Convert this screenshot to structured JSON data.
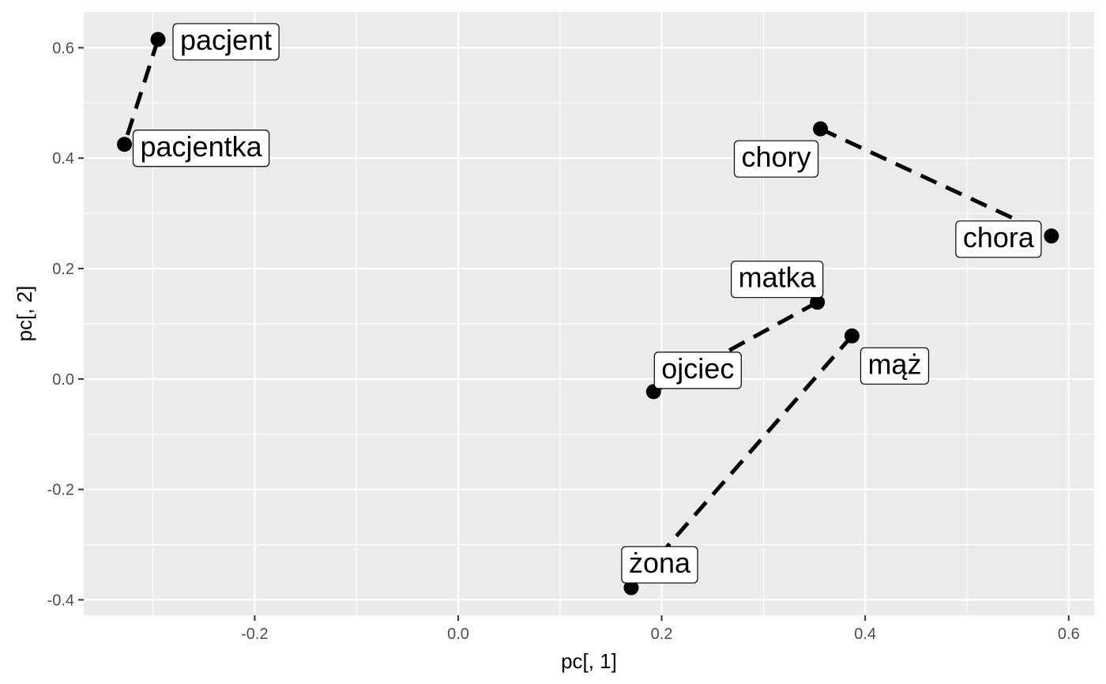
{
  "chart_data": {
    "type": "scatter",
    "xlabel": "pc[, 1]",
    "ylabel": "pc[, 2]",
    "xlim": [
      -0.368,
      0.625
    ],
    "ylim": [
      -0.428,
      0.665
    ],
    "x_ticks": [
      -0.2,
      0.0,
      0.2,
      0.4,
      0.6
    ],
    "x_tick_labels": [
      "-0.2",
      "0.0",
      "0.2",
      "0.4",
      "0.6"
    ],
    "y_ticks": [
      -0.4,
      -0.2,
      0.0,
      0.2,
      0.4,
      0.6
    ],
    "y_tick_labels": [
      "-0.4",
      "-0.2",
      "0.0",
      "0.2",
      "0.4",
      "0.6"
    ],
    "grid": true,
    "points": [
      {
        "label": "pacjent",
        "x": -0.295,
        "y": 0.615
      },
      {
        "label": "pacjentka",
        "x": -0.328,
        "y": 0.425
      },
      {
        "label": "chory",
        "x": 0.356,
        "y": 0.453
      },
      {
        "label": "chora",
        "x": 0.583,
        "y": 0.259
      },
      {
        "label": "matka",
        "x": 0.353,
        "y": 0.139
      },
      {
        "label": "ojciec",
        "x": 0.192,
        "y": -0.023
      },
      {
        "label": "mąż",
        "x": 0.387,
        "y": 0.078
      },
      {
        "label": "żona",
        "x": 0.17,
        "y": -0.378
      }
    ],
    "segments": [
      {
        "from": "pacjent",
        "to": "pacjentka"
      },
      {
        "from": "chory",
        "to": "chora"
      },
      {
        "from": "matka",
        "to": "ojciec"
      },
      {
        "from": "mąż",
        "to": "żona"
      }
    ],
    "colors": {
      "panel": "#ebebeb",
      "grid": "#ffffff",
      "point": "#000000",
      "tick_text": "#4d4d4d"
    }
  }
}
